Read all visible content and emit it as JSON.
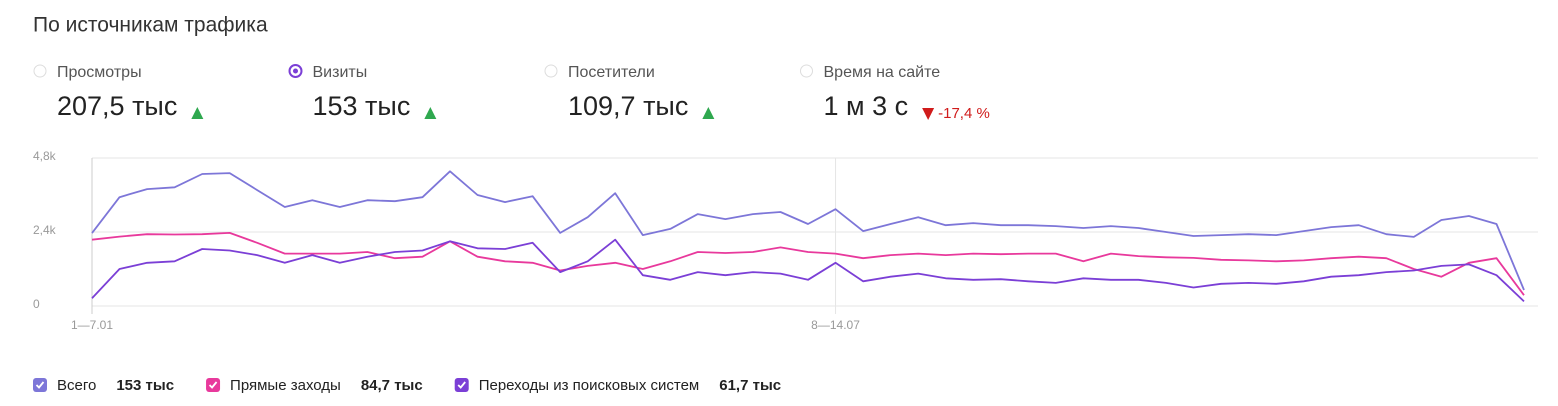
{
  "title": "По источникам трафика",
  "metrics": [
    {
      "label": "Просмотры",
      "value": "207,5 тыс",
      "trend": "up",
      "selected": false
    },
    {
      "label": "Визиты",
      "value": "153 тыс",
      "trend": "up",
      "selected": true
    },
    {
      "label": "Посетители",
      "value": "109,7 тыс",
      "trend": "up",
      "selected": false
    },
    {
      "label": "Время на сайте",
      "value": "1 м 3 с",
      "trend": "down",
      "change": "-17,4 %",
      "selected": false
    }
  ],
  "chart_data": {
    "type": "line",
    "categories": [
      "1—7.01",
      null,
      null,
      null,
      null,
      null,
      null,
      null,
      null,
      null,
      null,
      null,
      null,
      null,
      null,
      null,
      null,
      null,
      null,
      null,
      null,
      null,
      null,
      null,
      null,
      null,
      null,
      "8—14.07",
      null,
      null,
      null,
      null,
      null,
      null,
      null,
      null,
      null,
      null,
      null,
      null,
      null,
      null,
      null,
      null,
      null,
      null,
      null,
      null,
      null,
      null,
      null,
      null,
      null
    ],
    "ylim": [
      0,
      4800
    ],
    "yticks": [
      0,
      {
        "value": 2400,
        "label": "2,4k"
      },
      {
        "value": 4800,
        "label": "4,8k"
      }
    ],
    "grid": true,
    "series": [
      {
        "name": "Всего",
        "total": "153 тыс",
        "color": "#7d76d8",
        "values": [
          2365,
          3530,
          3790,
          3850,
          4280,
          4310,
          3760,
          3210,
          3430,
          3210,
          3430,
          3400,
          3530,
          4370,
          3600,
          3370,
          3560,
          2370,
          2880,
          3660,
          2300,
          2500,
          2980,
          2820,
          2980,
          3050,
          2660,
          3140,
          2430,
          2660,
          2880,
          2620,
          2690,
          2620,
          2620,
          2590,
          2530,
          2590,
          2530,
          2400,
          2270,
          2300,
          2330,
          2300,
          2430,
          2560,
          2620,
          2330,
          2240,
          2790,
          2920,
          2660,
          520
        ]
      },
      {
        "name": "Прямые заходы",
        "total": "84,7 тыс",
        "color": "#e8399c",
        "values": [
          2150,
          2250,
          2330,
          2320,
          2330,
          2370,
          2050,
          1700,
          1700,
          1700,
          1750,
          1550,
          1600,
          2100,
          1600,
          1450,
          1400,
          1150,
          1300,
          1400,
          1200,
          1450,
          1750,
          1720,
          1750,
          1900,
          1750,
          1700,
          1550,
          1650,
          1700,
          1650,
          1700,
          1680,
          1700,
          1700,
          1450,
          1700,
          1620,
          1580,
          1560,
          1500,
          1480,
          1450,
          1480,
          1550,
          1600,
          1550,
          1200,
          950,
          1400,
          1550,
          350
        ]
      },
      {
        "name": "Переходы из поисковых систем",
        "total": "61,7 тыс",
        "color": "#7b3fd6",
        "values": [
          250,
          1200,
          1400,
          1450,
          1850,
          1800,
          1650,
          1400,
          1650,
          1400,
          1600,
          1750,
          1800,
          2100,
          1870,
          1850,
          2050,
          1100,
          1450,
          2150,
          1000,
          850,
          1100,
          1000,
          1100,
          1050,
          850,
          1400,
          800,
          950,
          1050,
          900,
          850,
          870,
          800,
          750,
          900,
          850,
          850,
          750,
          600,
          720,
          750,
          720,
          800,
          950,
          1000,
          1100,
          1150,
          1300,
          1350,
          1000,
          150
        ]
      }
    ]
  }
}
